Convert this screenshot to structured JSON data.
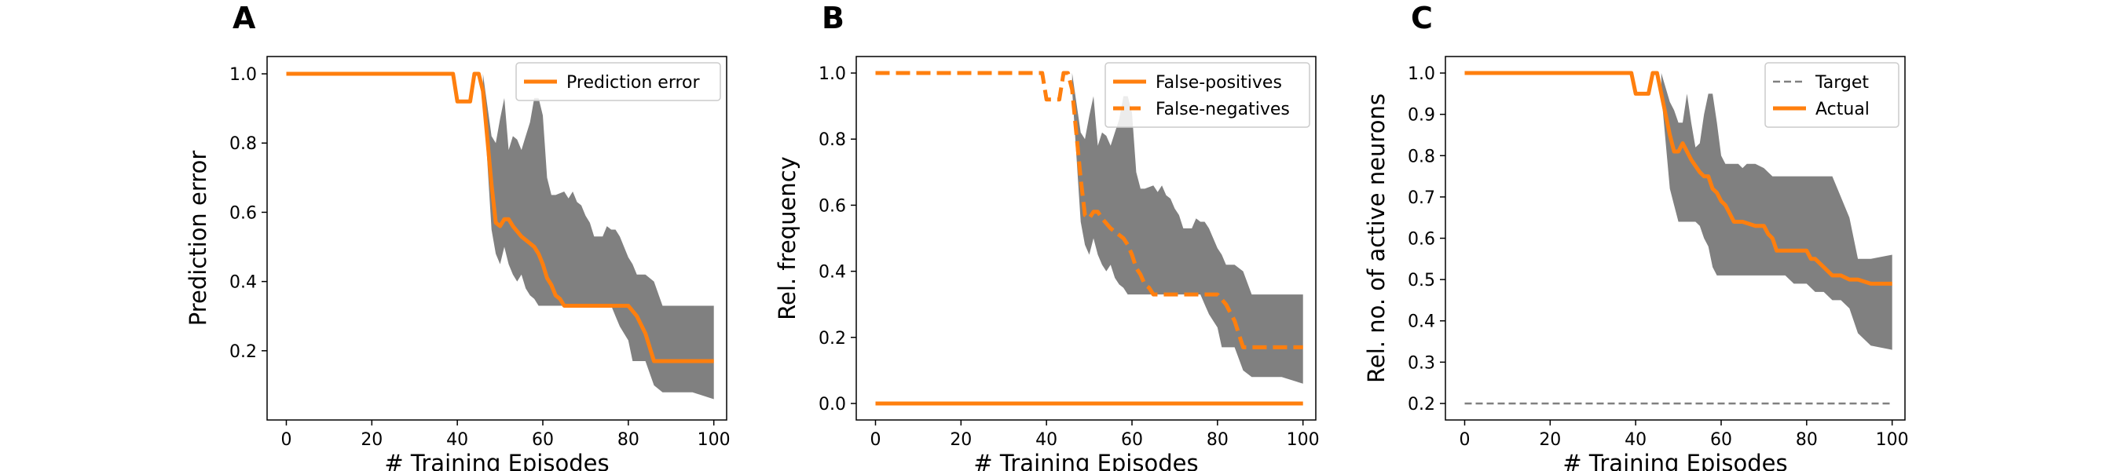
{
  "colors": {
    "orange": "#ff7f0e",
    "band": "#808080",
    "target": "#808080"
  },
  "chart_data": [
    {
      "type": "line",
      "panel": "A",
      "xlabel": "# Training Episodes",
      "ylabel": "Prediction error",
      "xlim": [
        -4.5,
        103
      ],
      "ylim": [
        0.0,
        1.05
      ],
      "xticks": [
        0,
        20,
        40,
        60,
        80,
        100
      ],
      "yticks": [
        0.2,
        0.4,
        0.6,
        0.8,
        1.0
      ],
      "xtick_labels": [
        "0",
        "20",
        "40",
        "60",
        "80",
        "100"
      ],
      "ytick_labels": [
        "0.2",
        "0.4",
        "0.6",
        "0.8",
        "1.0"
      ],
      "legend_position": "top-right",
      "series": [
        {
          "name": "Prediction error",
          "style": "solid",
          "x": [
            0,
            39,
            40,
            43,
            44,
            45,
            46,
            48,
            49,
            50,
            51,
            52,
            53,
            55,
            57,
            58,
            59,
            60,
            61,
            62,
            63,
            64,
            65,
            70,
            75,
            79,
            80,
            82,
            84,
            86,
            88,
            90,
            95,
            100
          ],
          "y": [
            1.0,
            1.0,
            0.92,
            0.92,
            1.0,
            1.0,
            0.95,
            0.68,
            0.57,
            0.56,
            0.58,
            0.58,
            0.56,
            0.53,
            0.51,
            0.5,
            0.48,
            0.45,
            0.41,
            0.39,
            0.36,
            0.35,
            0.33,
            0.33,
            0.33,
            0.33,
            0.33,
            0.3,
            0.25,
            0.17,
            0.17,
            0.17,
            0.17,
            0.17
          ]
        }
      ],
      "band": {
        "x": [
          46,
          48,
          49,
          50,
          51,
          52,
          53,
          54,
          55,
          56,
          57,
          58,
          59,
          60,
          61,
          62,
          63,
          65,
          66,
          67,
          68,
          69,
          70,
          71,
          72,
          73,
          74,
          75,
          76,
          77,
          78,
          79,
          80,
          81,
          82,
          84,
          86,
          88,
          90,
          95,
          100
        ],
        "upper": [
          1.0,
          0.82,
          0.8,
          0.87,
          0.93,
          0.78,
          0.82,
          0.81,
          0.78,
          0.82,
          0.86,
          0.93,
          0.93,
          0.88,
          0.7,
          0.65,
          0.65,
          0.66,
          0.64,
          0.66,
          0.63,
          0.62,
          0.59,
          0.57,
          0.53,
          0.53,
          0.53,
          0.56,
          0.55,
          0.55,
          0.53,
          0.5,
          0.47,
          0.45,
          0.42,
          0.42,
          0.4,
          0.33,
          0.33,
          0.33,
          0.33
        ],
        "lower": [
          0.95,
          0.55,
          0.48,
          0.45,
          0.5,
          0.45,
          0.42,
          0.4,
          0.42,
          0.38,
          0.36,
          0.35,
          0.33,
          0.33,
          0.33,
          0.33,
          0.33,
          0.33,
          0.33,
          0.33,
          0.33,
          0.33,
          0.33,
          0.33,
          0.33,
          0.33,
          0.33,
          0.33,
          0.33,
          0.3,
          0.27,
          0.25,
          0.23,
          0.17,
          0.17,
          0.17,
          0.1,
          0.08,
          0.08,
          0.08,
          0.06
        ]
      }
    },
    {
      "type": "line",
      "panel": "B",
      "xlabel": "# Training Episodes",
      "ylabel": "Rel. frequency",
      "xlim": [
        -4.5,
        103
      ],
      "ylim": [
        -0.05,
        1.05
      ],
      "xticks": [
        0,
        20,
        40,
        60,
        80,
        100
      ],
      "yticks": [
        0.0,
        0.2,
        0.4,
        0.6,
        0.8,
        1.0
      ],
      "xtick_labels": [
        "0",
        "20",
        "40",
        "60",
        "80",
        "100"
      ],
      "ytick_labels": [
        "0.0",
        "0.2",
        "0.4",
        "0.6",
        "0.8",
        "1.0"
      ],
      "legend_position": "top-right",
      "series": [
        {
          "name": "False-positives",
          "style": "solid",
          "x": [
            0,
            100
          ],
          "y": [
            0.0,
            0.0
          ]
        },
        {
          "name": "False-negatives",
          "style": "dashed",
          "x": [
            0,
            39,
            40,
            43,
            44,
            45,
            46,
            48,
            49,
            50,
            51,
            52,
            53,
            55,
            57,
            58,
            59,
            60,
            61,
            62,
            63,
            64,
            65,
            70,
            75,
            79,
            80,
            82,
            84,
            86,
            88,
            90,
            95,
            100
          ],
          "y": [
            1.0,
            1.0,
            0.92,
            0.92,
            1.0,
            1.0,
            0.95,
            0.68,
            0.57,
            0.56,
            0.58,
            0.58,
            0.56,
            0.53,
            0.51,
            0.5,
            0.48,
            0.45,
            0.41,
            0.39,
            0.36,
            0.35,
            0.33,
            0.33,
            0.33,
            0.33,
            0.33,
            0.3,
            0.25,
            0.17,
            0.17,
            0.17,
            0.17,
            0.17
          ]
        }
      ],
      "band": {
        "x": [
          46,
          48,
          49,
          50,
          51,
          52,
          53,
          54,
          55,
          56,
          57,
          58,
          59,
          60,
          61,
          62,
          63,
          65,
          66,
          67,
          68,
          69,
          70,
          71,
          72,
          73,
          74,
          75,
          76,
          77,
          78,
          79,
          80,
          81,
          82,
          84,
          86,
          88,
          90,
          95,
          100
        ],
        "upper": [
          1.0,
          0.82,
          0.8,
          0.87,
          0.93,
          0.78,
          0.82,
          0.81,
          0.78,
          0.82,
          0.86,
          0.93,
          0.93,
          0.88,
          0.7,
          0.65,
          0.65,
          0.66,
          0.64,
          0.66,
          0.63,
          0.62,
          0.59,
          0.57,
          0.53,
          0.53,
          0.53,
          0.56,
          0.55,
          0.55,
          0.53,
          0.5,
          0.47,
          0.45,
          0.42,
          0.42,
          0.4,
          0.33,
          0.33,
          0.33,
          0.33
        ],
        "lower": [
          0.95,
          0.55,
          0.48,
          0.45,
          0.5,
          0.45,
          0.42,
          0.4,
          0.42,
          0.38,
          0.36,
          0.35,
          0.33,
          0.33,
          0.33,
          0.33,
          0.33,
          0.33,
          0.33,
          0.33,
          0.33,
          0.33,
          0.33,
          0.33,
          0.33,
          0.33,
          0.33,
          0.33,
          0.33,
          0.3,
          0.27,
          0.25,
          0.23,
          0.17,
          0.17,
          0.17,
          0.1,
          0.08,
          0.08,
          0.08,
          0.06
        ]
      }
    },
    {
      "type": "line",
      "panel": "C",
      "xlabel": "# Training Episodes",
      "ylabel": "Rel. no. of active neurons",
      "xlim": [
        -4.5,
        103
      ],
      "ylim": [
        0.16,
        1.04
      ],
      "xticks": [
        0,
        20,
        40,
        60,
        80,
        100
      ],
      "yticks": [
        0.2,
        0.3,
        0.4,
        0.5,
        0.6,
        0.7,
        0.8,
        0.9,
        1.0
      ],
      "xtick_labels": [
        "0",
        "20",
        "40",
        "60",
        "80",
        "100"
      ],
      "ytick_labels": [
        "0.2",
        "0.3",
        "0.4",
        "0.5",
        "0.6",
        "0.7",
        "0.8",
        "0.9",
        "1.0"
      ],
      "legend_position": "top-right",
      "series": [
        {
          "name": "Target",
          "style": "dashed-thin",
          "x": [
            0,
            100
          ],
          "y": [
            0.2,
            0.2
          ]
        },
        {
          "name": "Actual",
          "style": "solid",
          "x": [
            0,
            39,
            40,
            43,
            44,
            45,
            46,
            48,
            49,
            50,
            51,
            52,
            53,
            55,
            56,
            57,
            58,
            59,
            60,
            61,
            62,
            63,
            64,
            65,
            68,
            70,
            71,
            72,
            73,
            75,
            76,
            77,
            80,
            81,
            82,
            84,
            86,
            88,
            90,
            92,
            95,
            100
          ],
          "y": [
            1.0,
            1.0,
            0.95,
            0.95,
            1.0,
            1.0,
            0.95,
            0.85,
            0.81,
            0.81,
            0.83,
            0.81,
            0.79,
            0.76,
            0.75,
            0.75,
            0.72,
            0.71,
            0.69,
            0.68,
            0.66,
            0.64,
            0.64,
            0.64,
            0.63,
            0.63,
            0.61,
            0.6,
            0.57,
            0.57,
            0.57,
            0.57,
            0.57,
            0.55,
            0.55,
            0.53,
            0.51,
            0.51,
            0.5,
            0.5,
            0.49,
            0.49
          ]
        }
      ],
      "band": {
        "x": [
          46,
          48,
          49,
          50,
          51,
          52,
          53,
          54,
          55,
          56,
          57,
          58,
          59,
          60,
          61,
          62,
          64,
          65,
          66,
          68,
          70,
          72,
          74,
          75,
          77,
          78,
          80,
          82,
          84,
          86,
          88,
          90,
          92,
          95,
          100
        ],
        "upper": [
          1.0,
          0.93,
          0.91,
          0.88,
          0.88,
          0.95,
          0.88,
          0.82,
          0.83,
          0.9,
          0.95,
          0.95,
          0.88,
          0.8,
          0.78,
          0.78,
          0.78,
          0.77,
          0.78,
          0.78,
          0.77,
          0.75,
          0.75,
          0.75,
          0.75,
          0.75,
          0.75,
          0.75,
          0.75,
          0.75,
          0.7,
          0.65,
          0.55,
          0.55,
          0.56
        ],
        "lower": [
          0.95,
          0.72,
          0.68,
          0.64,
          0.64,
          0.64,
          0.64,
          0.64,
          0.63,
          0.6,
          0.58,
          0.53,
          0.51,
          0.51,
          0.51,
          0.51,
          0.51,
          0.51,
          0.51,
          0.51,
          0.51,
          0.51,
          0.51,
          0.51,
          0.49,
          0.49,
          0.49,
          0.47,
          0.47,
          0.45,
          0.45,
          0.43,
          0.37,
          0.34,
          0.33
        ]
      }
    }
  ]
}
